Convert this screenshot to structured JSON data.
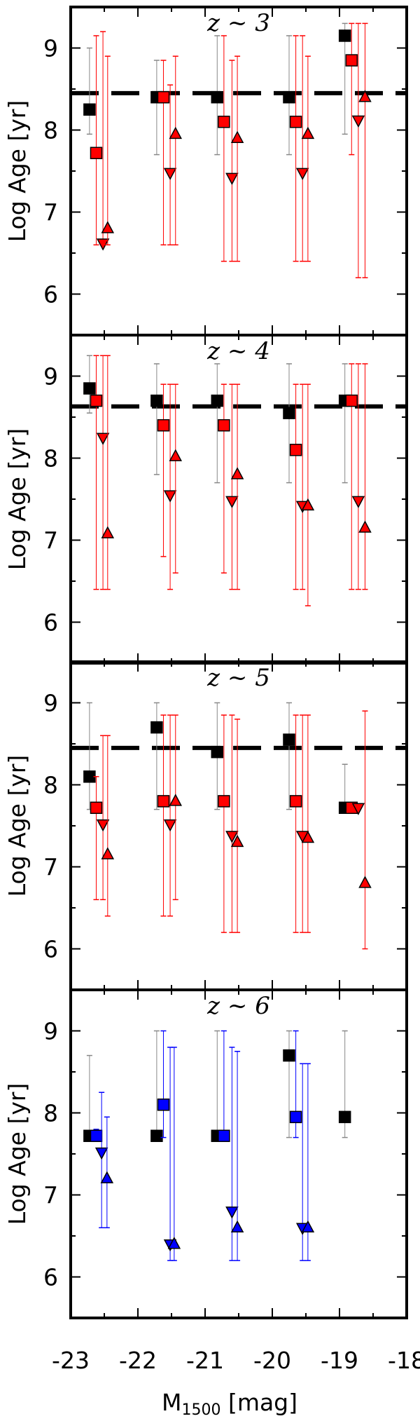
{
  "figure": {
    "xlabel_main": "M",
    "xlabel_sub": "1500",
    "xlabel_unit": " [mag]",
    "ylabel": "Log Age [yr]",
    "xticks": [
      "-23",
      "-22",
      "-21",
      "-20",
      "-19",
      "-18"
    ],
    "yticks": [
      "6",
      "7",
      "8",
      "9"
    ]
  },
  "colors": {
    "black": "#000000",
    "red": "#ff0000",
    "blue": "#0000ff",
    "gray": "#888888"
  },
  "chart_data": [
    {
      "type": "scatter",
      "title": "z ~ 3",
      "xlim": [
        -23,
        -18
      ],
      "ylim": [
        5.5,
        9.5
      ],
      "reference_line": 8.45,
      "series": [
        {
          "marker": "square",
          "color": "black",
          "points": [
            {
              "x": -22.72,
              "y": 8.25,
              "lo": 7.95,
              "hi": 9.0
            },
            {
              "x": -21.72,
              "y": 8.4,
              "lo": 7.7,
              "hi": 8.85
            },
            {
              "x": -20.82,
              "y": 8.4,
              "lo": 7.7,
              "hi": 9.15
            },
            {
              "x": -19.75,
              "y": 8.4,
              "lo": 7.7,
              "hi": 9.15
            },
            {
              "x": -18.92,
              "y": 9.15,
              "lo": 7.95,
              "hi": 9.3
            }
          ]
        },
        {
          "marker": "square",
          "color": "red",
          "points": [
            {
              "x": -22.62,
              "y": 7.72,
              "lo": 6.6,
              "hi": 9.15
            },
            {
              "x": -21.62,
              "y": 8.4,
              "lo": 6.6,
              "hi": 8.85
            },
            {
              "x": -20.72,
              "y": 8.1,
              "lo": 6.4,
              "hi": 9.15
            },
            {
              "x": -19.65,
              "y": 8.1,
              "lo": 6.4,
              "hi": 9.15
            },
            {
              "x": -18.82,
              "y": 8.85,
              "lo": 7.7,
              "hi": 9.3
            }
          ]
        },
        {
          "marker": "triangle-down",
          "color": "red",
          "points": [
            {
              "x": -22.52,
              "y": 6.62,
              "lo": 6.6,
              "hi": 9.2
            },
            {
              "x": -21.52,
              "y": 7.48,
              "lo": 6.6,
              "hi": 8.55
            },
            {
              "x": -20.6,
              "y": 7.42,
              "lo": 6.4,
              "hi": 8.85
            },
            {
              "x": -19.55,
              "y": 7.48,
              "lo": 6.4,
              "hi": 9.15
            },
            {
              "x": -18.72,
              "y": 8.12,
              "lo": 6.2,
              "hi": 9.3
            }
          ]
        },
        {
          "marker": "triangle-up",
          "color": "red",
          "points": [
            {
              "x": -22.45,
              "y": 6.8,
              "lo": 6.6,
              "hi": 8.9
            },
            {
              "x": -21.44,
              "y": 7.95,
              "lo": 6.6,
              "hi": 8.9
            },
            {
              "x": -20.52,
              "y": 7.9,
              "lo": 6.4,
              "hi": 8.9
            },
            {
              "x": -19.47,
              "y": 7.95,
              "lo": 6.4,
              "hi": 8.9
            },
            {
              "x": -18.62,
              "y": 8.4,
              "lo": 6.2,
              "hi": 9.3
            }
          ]
        }
      ]
    },
    {
      "type": "scatter",
      "title": "z ~ 4",
      "xlim": [
        -23,
        -18
      ],
      "ylim": [
        5.5,
        9.5
      ],
      "reference_line": 8.63,
      "series": [
        {
          "marker": "square",
          "color": "black",
          "points": [
            {
              "x": -22.72,
              "y": 8.85,
              "lo": 8.55,
              "hi": 9.25
            },
            {
              "x": -21.72,
              "y": 8.7,
              "lo": 7.8,
              "hi": 9.15
            },
            {
              "x": -20.82,
              "y": 8.7,
              "lo": 7.7,
              "hi": 9.15
            },
            {
              "x": -19.75,
              "y": 8.55,
              "lo": 7.7,
              "hi": 9.15
            },
            {
              "x": -18.92,
              "y": 8.7,
              "lo": 7.7,
              "hi": 9.15
            }
          ]
        },
        {
          "marker": "square",
          "color": "red",
          "points": [
            {
              "x": -22.62,
              "y": 8.7,
              "lo": 6.4,
              "hi": 9.25
            },
            {
              "x": -21.62,
              "y": 8.4,
              "lo": 6.8,
              "hi": 8.9
            },
            {
              "x": -20.72,
              "y": 8.4,
              "lo": 6.6,
              "hi": 8.9
            },
            {
              "x": -19.65,
              "y": 8.1,
              "lo": 6.4,
              "hi": 8.9
            },
            {
              "x": -18.82,
              "y": 8.7,
              "lo": 6.4,
              "hi": 9.15
            }
          ]
        },
        {
          "marker": "triangle-down",
          "color": "red",
          "points": [
            {
              "x": -22.52,
              "y": 8.25,
              "lo": 6.4,
              "hi": 9.25
            },
            {
              "x": -21.52,
              "y": 7.55,
              "lo": 6.4,
              "hi": 8.9
            },
            {
              "x": -20.6,
              "y": 7.48,
              "lo": 6.4,
              "hi": 8.9
            },
            {
              "x": -19.55,
              "y": 7.42,
              "lo": 6.4,
              "hi": 8.9
            },
            {
              "x": -18.72,
              "y": 7.48,
              "lo": 6.4,
              "hi": 9.15
            }
          ]
        },
        {
          "marker": "triangle-up",
          "color": "red",
          "points": [
            {
              "x": -22.45,
              "y": 7.08,
              "lo": 6.4,
              "hi": 9.25
            },
            {
              "x": -21.44,
              "y": 8.02,
              "lo": 6.6,
              "hi": 8.9
            },
            {
              "x": -20.52,
              "y": 7.8,
              "lo": 6.4,
              "hi": 8.9
            },
            {
              "x": -19.47,
              "y": 7.42,
              "lo": 6.2,
              "hi": 8.9
            },
            {
              "x": -18.62,
              "y": 7.15,
              "lo": 6.4,
              "hi": 9.15
            }
          ]
        }
      ]
    },
    {
      "type": "scatter",
      "title": "z ~ 5",
      "xlim": [
        -23,
        -18
      ],
      "ylim": [
        5.5,
        9.5
      ],
      "reference_line": 8.45,
      "series": [
        {
          "marker": "square",
          "color": "black",
          "points": [
            {
              "x": -22.72,
              "y": 8.1,
              "lo": 7.7,
              "hi": 9.0
            },
            {
              "x": -21.72,
              "y": 8.7,
              "lo": 7.7,
              "hi": 9.0
            },
            {
              "x": -20.82,
              "y": 8.4,
              "lo": 7.7,
              "hi": 9.0
            },
            {
              "x": -19.75,
              "y": 8.55,
              "lo": 7.7,
              "hi": 9.0
            },
            {
              "x": -18.92,
              "y": 7.72,
              "lo": 7.7,
              "hi": 8.25
            }
          ]
        },
        {
          "marker": "square",
          "color": "red",
          "points": [
            {
              "x": -22.62,
              "y": 7.72,
              "lo": 6.6,
              "hi": 8.1
            },
            {
              "x": -21.62,
              "y": 7.8,
              "lo": 6.4,
              "hi": 8.85
            },
            {
              "x": -20.72,
              "y": 7.8,
              "lo": 6.2,
              "hi": 8.85
            },
            {
              "x": -19.65,
              "y": 7.8,
              "lo": 6.2,
              "hi": 8.85
            },
            {
              "x": -18.82,
              "y": 7.72,
              "lo": 7.7,
              "hi": 7.75
            }
          ]
        },
        {
          "marker": "triangle-down",
          "color": "red",
          "points": [
            {
              "x": -22.52,
              "y": 7.52,
              "lo": 6.6,
              "hi": 8.6
            },
            {
              "x": -21.52,
              "y": 7.52,
              "lo": 6.4,
              "hi": 8.85
            },
            {
              "x": -20.6,
              "y": 7.38,
              "lo": 6.2,
              "hi": 8.85
            },
            {
              "x": -19.55,
              "y": 7.38,
              "lo": 6.2,
              "hi": 8.85
            },
            {
              "x": -18.72,
              "y": 7.72,
              "lo": 7.7,
              "hi": 7.75
            }
          ]
        },
        {
          "marker": "triangle-up",
          "color": "red",
          "points": [
            {
              "x": -22.45,
              "y": 7.15,
              "lo": 6.4,
              "hi": 8.6
            },
            {
              "x": -21.44,
              "y": 7.8,
              "lo": 6.6,
              "hi": 8.85
            },
            {
              "x": -20.52,
              "y": 7.3,
              "lo": 6.2,
              "hi": 8.8
            },
            {
              "x": -19.47,
              "y": 7.35,
              "lo": 6.2,
              "hi": 8.85
            },
            {
              "x": -18.62,
              "y": 6.8,
              "lo": 6.0,
              "hi": 8.9
            }
          ]
        }
      ]
    },
    {
      "type": "scatter",
      "title": "z ~ 6",
      "xlim": [
        -23,
        -18
      ],
      "ylim": [
        5.5,
        9.5
      ],
      "series": [
        {
          "marker": "square",
          "color": "black",
          "points": [
            {
              "x": -22.72,
              "y": 7.72,
              "lo": 7.7,
              "hi": 8.7
            },
            {
              "x": -21.72,
              "y": 7.72,
              "lo": 7.7,
              "hi": 9.0
            },
            {
              "x": -20.82,
              "y": 7.72,
              "lo": 7.7,
              "hi": 9.0
            },
            {
              "x": -19.75,
              "y": 8.7,
              "lo": 7.7,
              "hi": 9.0
            },
            {
              "x": -18.92,
              "y": 7.95,
              "lo": 7.7,
              "hi": 9.0
            }
          ]
        },
        {
          "marker": "square",
          "color": "blue",
          "points": [
            {
              "x": -22.62,
              "y": 7.72,
              "lo": 7.7,
              "hi": 7.8
            },
            {
              "x": -21.62,
              "y": 8.1,
              "lo": 7.7,
              "hi": 9.0
            },
            {
              "x": -20.72,
              "y": 7.72,
              "lo": 7.7,
              "hi": 9.0
            },
            {
              "x": -19.65,
              "y": 7.95,
              "lo": 7.7,
              "hi": 9.0
            }
          ]
        },
        {
          "marker": "triangle-down",
          "color": "blue",
          "points": [
            {
              "x": -22.54,
              "y": 7.52,
              "lo": 6.6,
              "hi": 8.25
            },
            {
              "x": -21.52,
              "y": 6.4,
              "lo": 6.2,
              "hi": 8.8
            },
            {
              "x": -20.6,
              "y": 6.8,
              "lo": 6.2,
              "hi": 8.8
            },
            {
              "x": -19.55,
              "y": 6.6,
              "lo": 6.2,
              "hi": 8.6
            }
          ]
        },
        {
          "marker": "triangle-up",
          "color": "blue",
          "points": [
            {
              "x": -22.46,
              "y": 7.2,
              "lo": 6.6,
              "hi": 7.95
            },
            {
              "x": -21.46,
              "y": 6.4,
              "lo": 6.2,
              "hi": 8.8
            },
            {
              "x": -20.52,
              "y": 6.6,
              "lo": 6.2,
              "hi": 8.75
            },
            {
              "x": -19.47,
              "y": 6.6,
              "lo": 6.2,
              "hi": 8.6
            }
          ]
        }
      ]
    }
  ]
}
